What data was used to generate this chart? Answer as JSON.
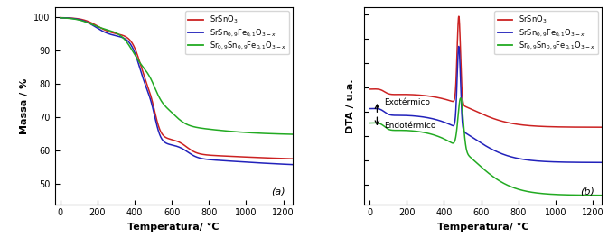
{
  "tg": {
    "xlim": [
      -30,
      1250
    ],
    "ylim": [
      44,
      103
    ],
    "yticks": [
      50,
      60,
      70,
      80,
      90,
      100
    ],
    "xticks": [
      0,
      200,
      400,
      600,
      800,
      1000,
      1200
    ],
    "xlabel": "Temperatura/ °C",
    "ylabel": "Massa / %",
    "label_a": "(a)",
    "colors": [
      "#cc2222",
      "#2222bb",
      "#22aa22"
    ]
  },
  "dta": {
    "xlim": [
      -30,
      1250
    ],
    "xlabel": "Temperatura/ °C",
    "ylabel": "DTA / u.a.",
    "xticks": [
      0,
      200,
      400,
      600,
      800,
      1000,
      1200
    ],
    "label_b": "(b)",
    "exo_label": "Exotérmico",
    "endo_label": "Endotérmico",
    "colors": [
      "#cc2222",
      "#2222bb",
      "#22aa22"
    ]
  },
  "legend_labels": [
    "SrSnO$_3$",
    "SrSn$_{0,9}$Fe$_{0,1}$O$_{3-x}$",
    "Sr$_{0,9}$Sn$_{0,9}$Fe$_{0,1}$O$_{3-x}$"
  ],
  "figsize": [
    6.73,
    2.73
  ],
  "dpi": 100
}
